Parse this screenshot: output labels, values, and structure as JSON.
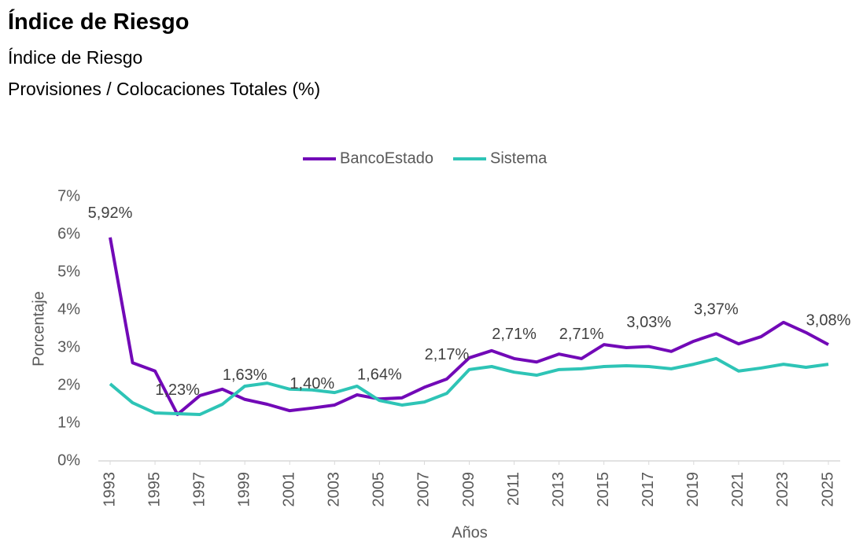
{
  "header": {
    "title": "Índice de Riesgo",
    "subtitle": "Índice de Riesgo",
    "description": "Provisiones / Colocaciones Totales (%)"
  },
  "chart_data": {
    "type": "line",
    "xlabel": "Años",
    "ylabel": "Porcentaje",
    "x": [
      1993,
      1994,
      1995,
      1996,
      1997,
      1998,
      1999,
      2000,
      2001,
      2002,
      2003,
      2004,
      2005,
      2006,
      2007,
      2008,
      2009,
      2010,
      2011,
      2012,
      2013,
      2014,
      2015,
      2016,
      2017,
      2018,
      2019,
      2020,
      2021,
      2022,
      2023,
      2024,
      2025
    ],
    "xlim": [
      1993,
      2025
    ],
    "xticks": [
      1993,
      1995,
      1997,
      1999,
      2001,
      2003,
      2005,
      2007,
      2009,
      2011,
      2013,
      2015,
      2017,
      2019,
      2021,
      2023,
      2025
    ],
    "ylim": [
      0,
      7
    ],
    "yticks": [
      {
        "value": 0,
        "label": "0%"
      },
      {
        "value": 1,
        "label": "1%"
      },
      {
        "value": 2,
        "label": "2%"
      },
      {
        "value": 3,
        "label": "3%"
      },
      {
        "value": 4,
        "label": "4%"
      },
      {
        "value": 5,
        "label": "5%"
      },
      {
        "value": 6,
        "label": "6%"
      },
      {
        "value": 7,
        "label": "7%"
      }
    ],
    "legend": "top",
    "series": [
      {
        "name": "BancoEstado",
        "color": "#7209b7",
        "values": [
          5.92,
          2.6,
          2.38,
          1.23,
          1.73,
          1.9,
          1.63,
          1.5,
          1.33,
          1.4,
          1.48,
          1.75,
          1.64,
          1.67,
          1.95,
          2.17,
          2.73,
          2.92,
          2.71,
          2.62,
          2.83,
          2.71,
          3.08,
          3.0,
          3.03,
          2.9,
          3.17,
          3.37,
          3.1,
          3.29,
          3.67,
          3.4,
          3.08
        ],
        "value_labels": [
          "5,92%",
          null,
          null,
          "1,23%",
          null,
          null,
          "1,63%",
          null,
          null,
          "1,40%",
          null,
          null,
          "1,64%",
          null,
          null,
          "2,17%",
          null,
          null,
          "2,71%",
          null,
          null,
          "2,71%",
          null,
          null,
          "3,03%",
          null,
          null,
          "3,37%",
          null,
          null,
          null,
          null,
          "3,08%"
        ]
      },
      {
        "name": "Sistema",
        "color": "#2ec4b6",
        "values": [
          2.04,
          1.54,
          1.27,
          1.25,
          1.23,
          1.5,
          1.98,
          2.06,
          1.9,
          1.88,
          1.81,
          1.98,
          1.6,
          1.48,
          1.56,
          1.79,
          2.42,
          2.5,
          2.35,
          2.27,
          2.42,
          2.44,
          2.5,
          2.52,
          2.5,
          2.44,
          2.56,
          2.71,
          2.38,
          2.46,
          2.56,
          2.48,
          2.56
        ]
      }
    ]
  }
}
